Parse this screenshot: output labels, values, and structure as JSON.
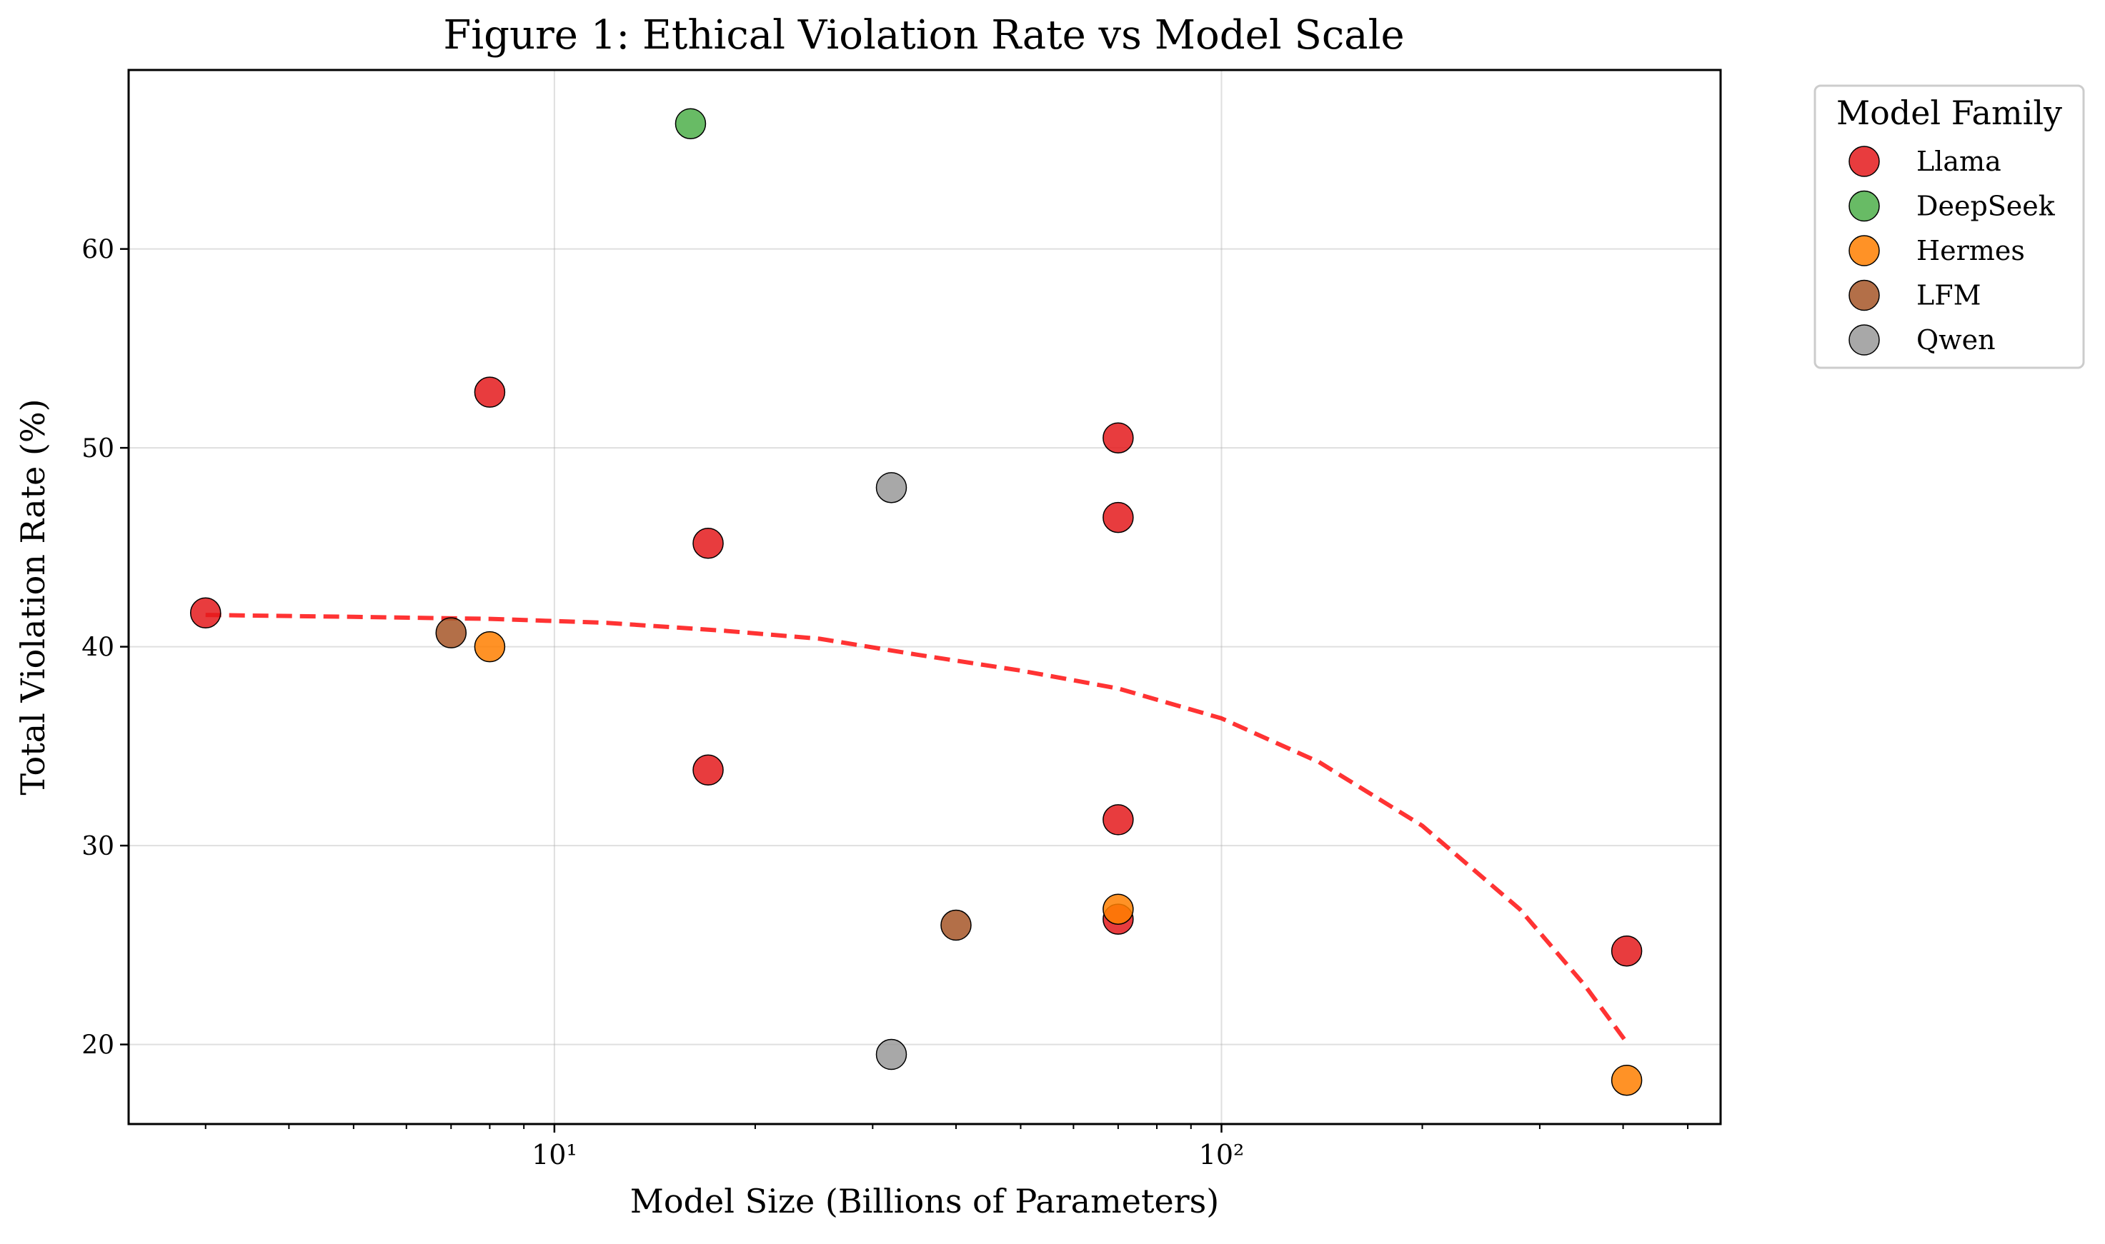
{
  "chart_data": {
    "type": "scatter",
    "title": "Figure 1: Ethical Violation Rate vs Model Scale",
    "xlabel": "Model Size (Billions of Parameters)",
    "ylabel": "Total Violation Rate (%)",
    "x_scale": "log",
    "xlim": [
      2.3,
      560
    ],
    "ylim": [
      16.0,
      69.0
    ],
    "x_major_ticks": [
      10,
      100
    ],
    "x_tick_labels": [
      "10¹",
      "10²"
    ],
    "y_ticks": [
      20,
      30,
      40,
      50,
      60
    ],
    "y_tick_labels": [
      "20",
      "30",
      "40",
      "50",
      "60"
    ],
    "grid": true,
    "legend": {
      "title": "Model Family",
      "placement": "outside-top-right"
    },
    "series": [
      {
        "name": "Llama",
        "color": "#e41a1c",
        "points": [
          [
            3,
            41.7
          ],
          [
            8,
            52.8
          ],
          [
            17,
            45.2
          ],
          [
            17,
            33.8
          ],
          [
            70,
            50.5
          ],
          [
            70,
            46.5
          ],
          [
            70,
            31.3
          ],
          [
            70,
            26.3
          ],
          [
            405,
            24.7
          ]
        ]
      },
      {
        "name": "DeepSeek",
        "color": "#4daf4a",
        "points": [
          [
            16,
            66.3
          ]
        ]
      },
      {
        "name": "Hermes",
        "color": "#ff7f00",
        "points": [
          [
            8,
            40.0
          ],
          [
            70,
            26.8
          ],
          [
            405,
            18.2
          ]
        ]
      },
      {
        "name": "LFM",
        "color": "#a65628",
        "points": [
          [
            7,
            40.7
          ],
          [
            40,
            26.0
          ]
        ]
      },
      {
        "name": "Qwen",
        "color": "#999999",
        "points": [
          [
            32,
            48.0
          ],
          [
            32,
            19.5
          ]
        ]
      }
    ],
    "trendline": {
      "color": "#ff0000",
      "style": "dashed",
      "points": [
        [
          3,
          41.6
        ],
        [
          5,
          41.5
        ],
        [
          8,
          41.4
        ],
        [
          12,
          41.2
        ],
        [
          18,
          40.8
        ],
        [
          25,
          40.4
        ],
        [
          35,
          39.6
        ],
        [
          50,
          38.8
        ],
        [
          70,
          37.9
        ],
        [
          100,
          36.4
        ],
        [
          140,
          34.2
        ],
        [
          200,
          31.0
        ],
        [
          280,
          26.8
        ],
        [
          350,
          23.0
        ],
        [
          405,
          20.1
        ]
      ]
    }
  }
}
